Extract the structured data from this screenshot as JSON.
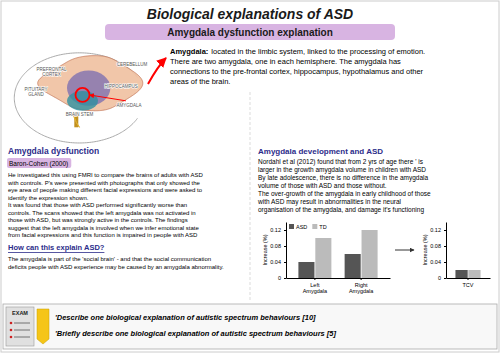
{
  "title": "Biological explanations of ASD",
  "subtitle": "Amygdala dysfunction explanation",
  "annotations": {
    "brain_labels": [
      [
        "CEREBELLUM"
      ],
      [
        "HIPPOCAMPUS"
      ],
      [
        "PREFRONTAL",
        "CORTEX"
      ],
      [
        "BRAIN STEM"
      ],
      [
        "PITUITARY",
        "GLAND"
      ],
      [
        "AMYGDALA"
      ]
    ],
    "amygdala": {
      "header": "Amygdala:",
      "lines": [
        "located in the limbic system, linked to the processing of emotion.",
        "There are two amygdala, one in each hemisphere. The amygdala has",
        "connections to the pre-frontal cortex, hippocampus, hypothalamus and other",
        "areas of the brain."
      ]
    },
    "dysfunction": {
      "header": "Amygdala dysfunction",
      "color": "#2c2c8a",
      "study_label": "Baron-Cohen (2000)",
      "lines": [
        "He investigated this using FMRI to compare the brains of adults with ASD",
        "with controls. P's were presented with photographs that only showed the",
        "eye area of people making different facial expressions and were asked to",
        "identify the expression shown.",
        "It was found that those with ASD performed significantly worse than",
        "controls. The scans showed that the left amygdala was not activated in",
        "those with ASD, but was strongly active in the controls. The findings",
        "suggest that the left amygdala is involved when we infer emotional state",
        "from facial expressions and this function is impaired in people with ASD"
      ]
    },
    "explain": {
      "header": "How can this explain ASD?",
      "color": "#2c2c8a",
      "lines": [
        "The amygdala is part of the 'social brain' - and that the social communication",
        "deficits people with ASD experience may be caused by an amygdala abnormality."
      ]
    },
    "development": {
      "header": "Amygdala development and ASD",
      "color": "#2c2c8a",
      "lines": [
        "Nordahl et al (2012) found that from 2 yrs of age there ' is",
        "larger in the growth amygdala volume in children with ASD",
        "By late adolescence, there is no difference in the amygdala",
        "volume of those with ASD and those without.",
        "The over-growth of the amygdala in early childhood of those",
        "with ASD may result in abnormalities in the neural",
        "organisation of the amygdala, and damage it's functioning"
      ]
    },
    "exam": {
      "icon": "EXAM",
      "questions": [
        "'Describe one biological explanation of autistic spectrum behaviours [10]",
        "'Briefly describe one biological explanation of autistic spectrum behaviours [5]"
      ]
    }
  },
  "chart_data": [
    {
      "type": "bar",
      "categories": [
        "Left\nAmygdala",
        "Right\nAmygdala"
      ],
      "series": [
        {
          "name": "ASD",
          "color": "#555555",
          "values": [
            0.04,
            0.06
          ]
        },
        {
          "name": "TD",
          "color": "#bbbbbb",
          "values": [
            0.1,
            0.12
          ]
        }
      ],
      "ylabel": "Increase (%)",
      "ylim": [
        0,
        0.14
      ],
      "yticks": [
        0,
        0.04,
        0.08,
        0.12
      ],
      "legend": "upper left",
      "grid": false
    },
    {
      "type": "bar",
      "categories": [
        "TCV"
      ],
      "series": [
        {
          "color": "#555555",
          "values": [
            0.02
          ]
        },
        {
          "color": "#bbbbbb",
          "values": [
            0.02
          ]
        }
      ],
      "ylabel": "Increase (%)",
      "ylim": [
        0,
        0.14
      ],
      "yticks": [
        0,
        0.04,
        0.08,
        0.12
      ],
      "grid": false
    }
  ]
}
